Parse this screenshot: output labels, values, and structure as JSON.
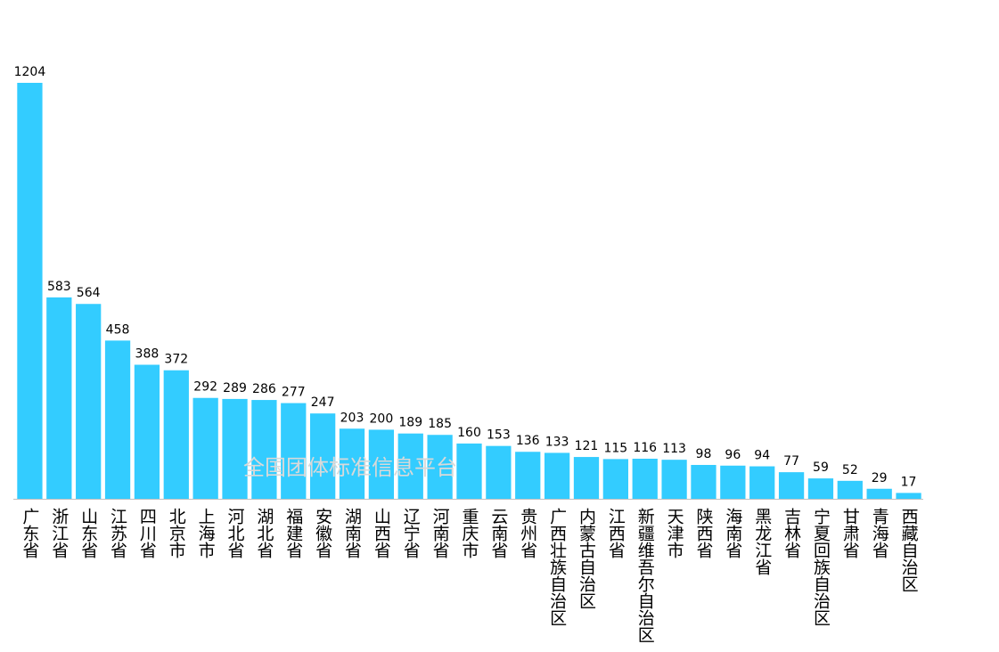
{
  "chart_data": {
    "type": "bar",
    "categories": [
      "广东省",
      "浙江省",
      "山东省",
      "江苏省",
      "四川省",
      "北京市",
      "上海市",
      "河北省",
      "湖北省",
      "福建省",
      "安徽省",
      "湖南省",
      "山西省",
      "辽宁省",
      "河南省",
      "重庆市",
      "云南省",
      "贵州省",
      "广西壮族自治区",
      "内蒙古自治区",
      "江西省",
      "新疆维吾尔自治区",
      "天津市",
      "陕西省",
      "海南省",
      "黑龙江省",
      "吉林省",
      "宁夏回族自治区",
      "甘肃省",
      "青海省",
      "西藏自治区"
    ],
    "values": [
      1204,
      583,
      564,
      458,
      388,
      372,
      292,
      289,
      286,
      277,
      247,
      203,
      200,
      189,
      185,
      160,
      153,
      136,
      133,
      121,
      115,
      116,
      113,
      98,
      96,
      94,
      77,
      59,
      52,
      29,
      17
    ],
    "color": "#33ccff",
    "watermark": "全国团体标准信息平台"
  }
}
